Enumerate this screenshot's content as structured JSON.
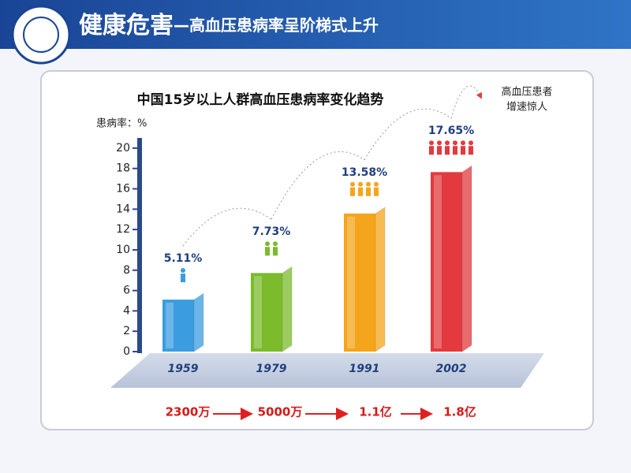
{
  "header": {
    "title_main": "健康危害",
    "title_sub": "—高血压患病率呈阶梯式上升"
  },
  "chart_data": {
    "type": "bar3d",
    "title": "中国15岁以上人群高血压患病率变化趋势",
    "y_label": "患病率：%",
    "categories": [
      "1959",
      "1979",
      "1991",
      "2002"
    ],
    "values": [
      5.11,
      7.73,
      13.58,
      17.65
    ],
    "value_labels": [
      "5.11%",
      "7.73%",
      "13.58%",
      "17.65%"
    ],
    "colors": [
      "#3b9de0",
      "#7bbb2c",
      "#f5a51b",
      "#e23a3e"
    ],
    "ylim": [
      0,
      21
    ],
    "yticks": [
      0,
      2,
      4,
      6,
      8,
      10,
      12,
      14,
      16,
      18,
      20
    ],
    "annotation": [
      "高血压患者",
      "增速惊人"
    ],
    "patient_counts": [
      "2300万",
      "5000万",
      "1.1亿",
      "1.8亿"
    ]
  }
}
